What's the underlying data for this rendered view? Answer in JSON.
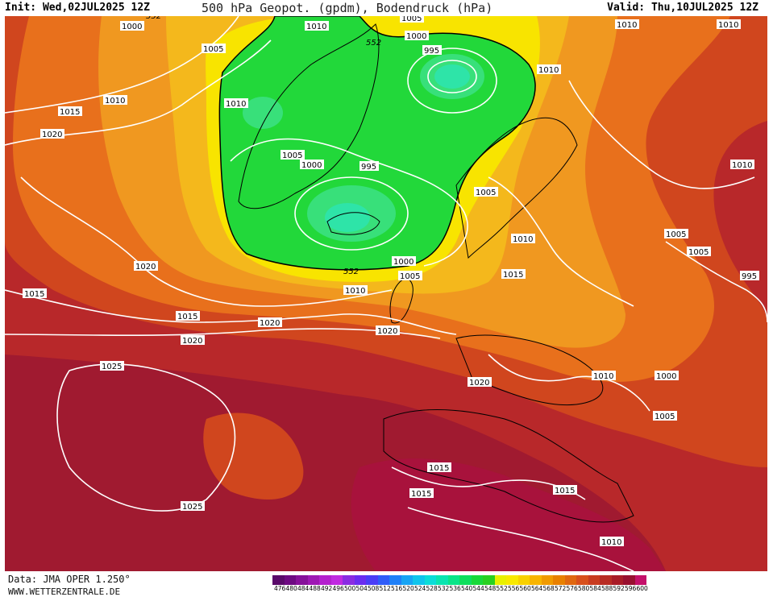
{
  "header": {
    "init": "Init: Wed,02JUL2025 12Z",
    "title": "500 hPa Geopot. (gpdm), Bodendruck (hPa)",
    "valid": "Valid: Thu,10JUL2025 12Z"
  },
  "footer": {
    "source": "Data: JMA OPER 1.250°",
    "website": "WWW.WETTERZENTRALE.DE"
  },
  "legend": {
    "labels": [
      "476",
      "480",
      "484",
      "488",
      "492",
      "496",
      "500",
      "504",
      "508",
      "512",
      "516",
      "520",
      "524",
      "528",
      "532",
      "536",
      "540",
      "544",
      "548",
      "552",
      "556",
      "560",
      "564",
      "568",
      "572",
      "576",
      "580",
      "584",
      "588",
      "592",
      "596",
      "600"
    ],
    "colors": [
      "#5a0a6a",
      "#6e0a82",
      "#86109a",
      "#9e18b4",
      "#b420ce",
      "#c02ae0",
      "#8a2be2",
      "#6a2cf0",
      "#4a3cf6",
      "#2f5cf8",
      "#1f80f8",
      "#17a4f4",
      "#10c4ec",
      "#0cdcd8",
      "#0ae4b0",
      "#0ae488",
      "#0fde5c",
      "#18d838",
      "#28d020",
      "#e8f000",
      "#f8e800",
      "#f8d000",
      "#f8b400",
      "#f09a00",
      "#e88000",
      "#e06810",
      "#d8501c",
      "#c83c20",
      "#b82c24",
      "#a81c28",
      "#981030",
      "#c4106a"
    ]
  },
  "map": {
    "colors": {
      "background": "#b8282a",
      "dark_red": "#a01a30",
      "crimson": "#a8123c",
      "orange_red": "#d0461e",
      "orange": "#e8701c",
      "light_orange": "#f09820",
      "amber": "#f4b81c",
      "yellow": "#f8e400",
      "green": "#22d83a",
      "light_green": "#38e07a",
      "aqua": "#2ee4a8",
      "isobar": "#ffffff",
      "coast": "#000000"
    },
    "geopotential_labels": [
      "552",
      "552",
      "552"
    ],
    "isobar_labels": [
      "1000",
      "1005",
      "1010",
      "1005",
      "1000",
      "995",
      "1010",
      "1010",
      "1010",
      "1015",
      "1010",
      "1010",
      "1020",
      "1005",
      "1000",
      "995",
      "1005",
      "1010",
      "1005",
      "1010",
      "1005",
      "995",
      "1020",
      "1000",
      "1005",
      "1010",
      "1015",
      "1015",
      "1015",
      "1020",
      "1020",
      "1020",
      "1025",
      "1020",
      "1010",
      "1000",
      "1005",
      "1015",
      "1015",
      "1015",
      "1025",
      "1010"
    ]
  }
}
